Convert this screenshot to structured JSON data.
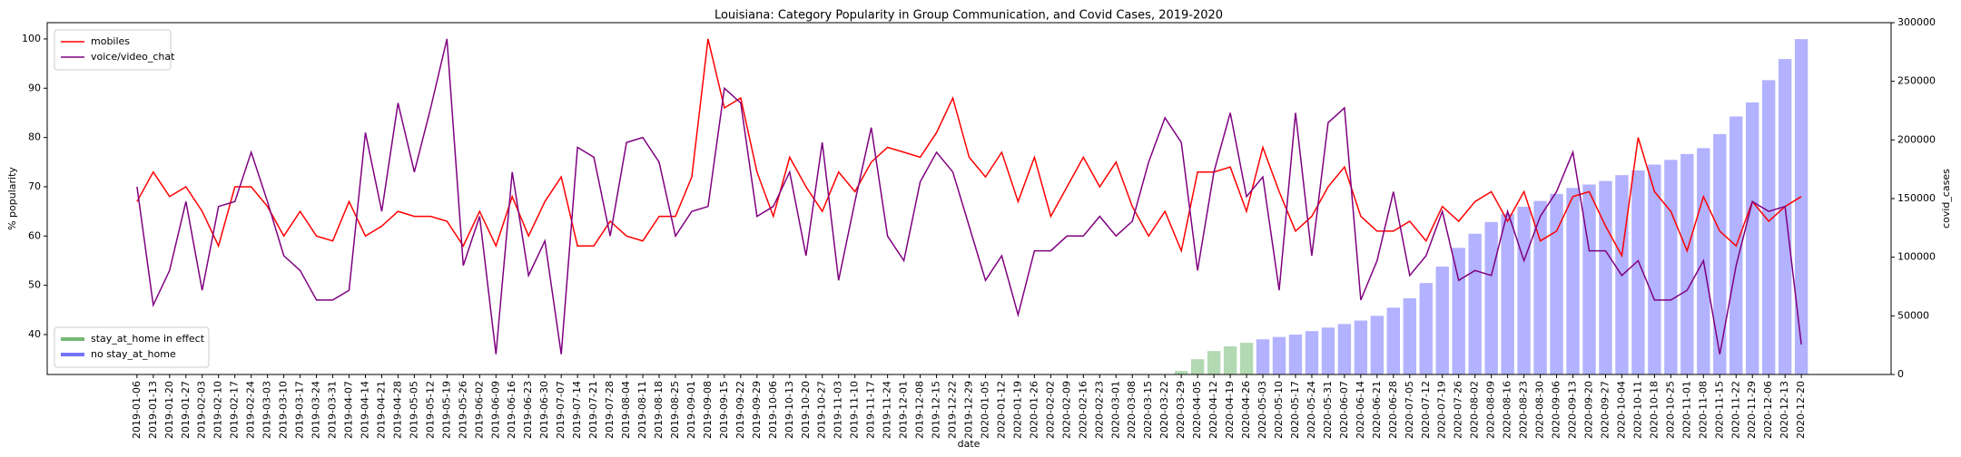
{
  "chart_data": {
    "type": "line",
    "title": "Louisiana: Category Popularity in Group Communication, and Covid Cases, 2019-2020",
    "x_label": "date",
    "y_label": "% popularity",
    "y2_label": "covid_cases",
    "categories": [
      "2019-01-06",
      "2019-01-13",
      "2019-01-20",
      "2019-01-27",
      "2019-02-03",
      "2019-02-10",
      "2019-02-17",
      "2019-02-24",
      "2019-03-03",
      "2019-03-10",
      "2019-03-17",
      "2019-03-24",
      "2019-03-31",
      "2019-04-07",
      "2019-04-14",
      "2019-04-21",
      "2019-04-28",
      "2019-05-05",
      "2019-05-12",
      "2019-05-19",
      "2019-05-26",
      "2019-06-02",
      "2019-06-09",
      "2019-06-16",
      "2019-06-23",
      "2019-06-30",
      "2019-07-07",
      "2019-07-14",
      "2019-07-21",
      "2019-07-28",
      "2019-08-04",
      "2019-08-11",
      "2019-08-18",
      "2019-08-25",
      "2019-09-01",
      "2019-09-08",
      "2019-09-15",
      "2019-09-22",
      "2019-09-29",
      "2019-10-06",
      "2019-10-13",
      "2019-10-20",
      "2019-10-27",
      "2019-11-03",
      "2019-11-10",
      "2019-11-17",
      "2019-11-24",
      "2019-12-01",
      "2019-12-08",
      "2019-12-15",
      "2019-12-22",
      "2019-12-29",
      "2020-01-05",
      "2020-01-12",
      "2020-01-19",
      "2020-01-26",
      "2020-02-02",
      "2020-02-09",
      "2020-02-16",
      "2020-02-23",
      "2020-03-01",
      "2020-03-08",
      "2020-03-15",
      "2020-03-22",
      "2020-03-29",
      "2020-04-05",
      "2020-04-12",
      "2020-04-19",
      "2020-04-26",
      "2020-05-03",
      "2020-05-10",
      "2020-05-17",
      "2020-05-24",
      "2020-05-31",
      "2020-06-07",
      "2020-06-14",
      "2020-06-21",
      "2020-06-28",
      "2020-07-05",
      "2020-07-12",
      "2020-07-19",
      "2020-07-26",
      "2020-08-02",
      "2020-08-09",
      "2020-08-16",
      "2020-08-23",
      "2020-08-30",
      "2020-09-06",
      "2020-09-13",
      "2020-09-20",
      "2020-09-27",
      "2020-10-04",
      "2020-10-11",
      "2020-10-18",
      "2020-10-25",
      "2020-11-01",
      "2020-11-08",
      "2020-11-15",
      "2020-11-22",
      "2020-11-29",
      "2020-12-06",
      "2020-12-13",
      "2020-12-20"
    ],
    "series": [
      {
        "name": "mobiles",
        "type": "line",
        "color": "#ff0000",
        "values": [
          67,
          73,
          68,
          70,
          65,
          58,
          70,
          70,
          66,
          60,
          65,
          60,
          59,
          67,
          60,
          62,
          65,
          64,
          64,
          63,
          58,
          65,
          58,
          68,
          60,
          67,
          72,
          58,
          58,
          63,
          60,
          59,
          64,
          64,
          72,
          100,
          86,
          88,
          73,
          64,
          76,
          70,
          65,
          73,
          69,
          75,
          78,
          77,
          76,
          81,
          88,
          76,
          72,
          77,
          67,
          76,
          64,
          70,
          76,
          70,
          75,
          66,
          60,
          65,
          57,
          73,
          73,
          74,
          65,
          78,
          69,
          61,
          64,
          70,
          74,
          64,
          61,
          61,
          63,
          59,
          66,
          63,
          67,
          69,
          63,
          69,
          59,
          61,
          68,
          69,
          62,
          56,
          80,
          69,
          65,
          57,
          68,
          61,
          58,
          67,
          63,
          66,
          68
        ]
      },
      {
        "name": "voice/video_chat",
        "type": "line",
        "color": "#800080",
        "values": [
          70,
          46,
          53,
          67,
          49,
          66,
          67,
          77,
          67,
          56,
          53,
          47,
          47,
          49,
          81,
          65,
          87,
          73,
          86,
          100,
          54,
          64,
          36,
          73,
          52,
          59,
          36,
          78,
          76,
          60,
          79,
          80,
          75,
          60,
          65,
          66,
          90,
          87,
          64,
          66,
          73,
          56,
          79,
          51,
          67,
          82,
          60,
          55,
          71,
          77,
          73,
          62,
          51,
          56,
          44,
          57,
          57,
          60,
          60,
          64,
          60,
          63,
          75,
          84,
          79,
          53,
          73,
          85,
          68,
          72,
          49,
          85,
          56,
          83,
          86,
          47,
          55,
          69,
          52,
          56,
          65,
          51,
          53,
          52,
          65,
          55,
          64,
          69,
          77,
          57,
          57,
          52,
          55,
          47,
          47,
          49,
          55,
          36,
          54,
          67,
          65,
          66,
          38
        ]
      },
      {
        "name": "stay_at_home in effect",
        "type": "bar",
        "axis": "y2",
        "color": "#008000",
        "values": [
          null,
          null,
          null,
          null,
          null,
          null,
          null,
          null,
          null,
          null,
          null,
          null,
          null,
          null,
          null,
          null,
          null,
          null,
          null,
          null,
          null,
          null,
          null,
          null,
          null,
          null,
          null,
          null,
          null,
          null,
          null,
          null,
          null,
          null,
          null,
          null,
          null,
          null,
          null,
          null,
          null,
          null,
          null,
          null,
          null,
          null,
          null,
          null,
          null,
          null,
          null,
          null,
          null,
          null,
          null,
          null,
          null,
          null,
          null,
          null,
          null,
          null,
          null,
          null,
          3000,
          13000,
          20000,
          24000,
          27000,
          null,
          null,
          null,
          null,
          null,
          null,
          null,
          null,
          null,
          null,
          null,
          null,
          null,
          null,
          null,
          null,
          null,
          null,
          null,
          null,
          null,
          null,
          null,
          null,
          null,
          null,
          null,
          null,
          null,
          null,
          null,
          null,
          null,
          null
        ]
      },
      {
        "name": "no stay_at_home",
        "type": "bar",
        "axis": "y2",
        "color": "#0000ff",
        "values": [
          null,
          null,
          null,
          null,
          null,
          null,
          null,
          null,
          null,
          null,
          null,
          null,
          null,
          null,
          null,
          null,
          null,
          null,
          null,
          null,
          null,
          null,
          null,
          null,
          null,
          null,
          null,
          null,
          null,
          null,
          null,
          null,
          null,
          null,
          null,
          null,
          null,
          null,
          null,
          null,
          null,
          null,
          null,
          null,
          null,
          null,
          null,
          null,
          null,
          null,
          null,
          null,
          null,
          null,
          null,
          null,
          null,
          null,
          null,
          null,
          null,
          null,
          null,
          null,
          null,
          null,
          null,
          null,
          null,
          30000,
          32000,
          34000,
          37000,
          40000,
          43000,
          46000,
          50000,
          57000,
          65000,
          78000,
          92000,
          108000,
          120000,
          130000,
          137000,
          143000,
          148000,
          154000,
          159000,
          162000,
          165000,
          170000,
          174000,
          179000,
          183000,
          188000,
          193000,
          205000,
          220000,
          232000,
          251000,
          269000,
          286000
        ]
      }
    ],
    "ylim": [
      31.9,
      103.3
    ],
    "yticks": [
      40,
      50,
      60,
      70,
      80,
      90,
      100
    ],
    "y2lim": [
      0,
      300000
    ],
    "y2ticks": [
      0,
      50000,
      100000,
      150000,
      200000,
      250000,
      300000
    ],
    "line_legend": "upper left",
    "bar_legend": "lower left"
  }
}
